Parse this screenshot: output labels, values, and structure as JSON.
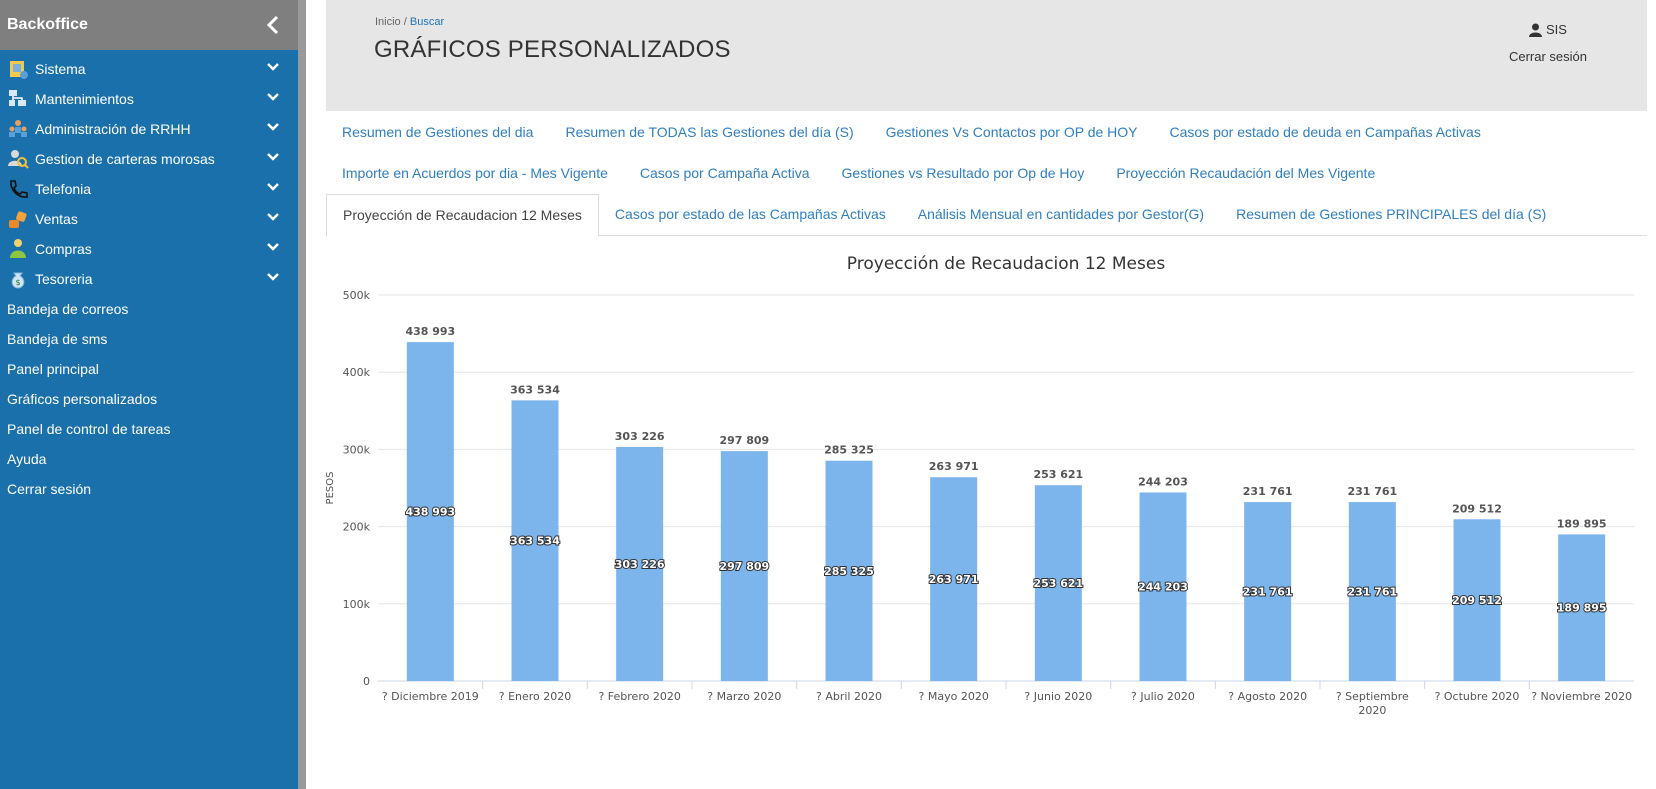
{
  "app": {
    "title": "Backoffice"
  },
  "sidebar": {
    "items": [
      {
        "label": "Sistema",
        "icon": "system-icon",
        "expandable": true
      },
      {
        "label": "Mantenimientos",
        "icon": "sitemap-icon",
        "expandable": true
      },
      {
        "label": "Administración de RRHH",
        "icon": "people-icon",
        "expandable": true
      },
      {
        "label": "Gestion de carteras morosas",
        "icon": "search-user-icon",
        "expandable": true
      },
      {
        "label": "Telefonia",
        "icon": "phone-icon",
        "expandable": true
      },
      {
        "label": "Ventas",
        "icon": "sales-icon",
        "expandable": true
      },
      {
        "label": "Compras",
        "icon": "buyer-icon",
        "expandable": true
      },
      {
        "label": "Tesoreria",
        "icon": "money-bag-icon",
        "expandable": true
      },
      {
        "label": "Bandeja de correos",
        "expandable": false
      },
      {
        "label": "Bandeja de sms",
        "expandable": false
      },
      {
        "label": "Panel principal",
        "expandable": false
      },
      {
        "label": "Gráficos personalizados",
        "expandable": false
      },
      {
        "label": "Panel de control de tareas",
        "expandable": false
      },
      {
        "label": "Ayuda",
        "expandable": false
      },
      {
        "label": "Cerrar sesión",
        "expandable": false
      }
    ]
  },
  "header": {
    "breadcrumb_home": "Inicio",
    "breadcrumb_sep": "/",
    "breadcrumb_current": "Buscar",
    "title": "GRÁFICOS PERSONALIZADOS",
    "user": "SIS",
    "logout": "Cerrar sesión"
  },
  "tabs": {
    "rows": [
      [
        "Resumen de Gestiones del dia",
        "Resumen de TODAS las Gestiones del día (S)",
        "Gestiones Vs Contactos por OP de HOY",
        "Casos por estado de deuda en Campañas Activas"
      ],
      [
        "Importe en Acuerdos por dia - Mes Vigente",
        "Casos por Campaña Activa",
        "Gestiones vs Resultado por Op de Hoy",
        "Proyección Recaudación del Mes Vigente"
      ],
      [
        "Proyección de Recaudacion 12 Meses",
        "Casos por estado de las Campañas Activas",
        "Análisis Mensual en cantidades por Gestor(G)",
        "Resumen de Gestiones PRINCIPALES del día (S)"
      ]
    ],
    "active": "Proyección de Recaudacion 12 Meses"
  },
  "colors": {
    "sidebar": "#1a70aa",
    "bar": "#7cb5ec",
    "link": "#2f7fc1"
  },
  "chart_data": {
    "type": "bar",
    "title": "Proyección de Recaudacion 12 Meses",
    "ylabel": "PESOS",
    "xlabel": "",
    "ylim": [
      0,
      500000
    ],
    "yticks": [
      "0",
      "100k",
      "200k",
      "300k",
      "400k",
      "500k"
    ],
    "grid": true,
    "categories": [
      "? Diciembre 2019",
      "? Enero 2020",
      "? Febrero 2020",
      "? Marzo 2020",
      "? Abril 2020",
      "? Mayo 2020",
      "? Junio 2020",
      "? Julio 2020",
      "? Agosto 2020",
      "? Septiembre 2020",
      "? Octubre 2020",
      "? Noviembre 2020"
    ],
    "values": [
      438993,
      363534,
      303226,
      297809,
      285325,
      263971,
      253621,
      244203,
      231761,
      231761,
      209512,
      189895
    ],
    "value_labels": [
      "438 993",
      "363 534",
      "303 226",
      "297 809",
      "285 325",
      "263 971",
      "253 621",
      "244 203",
      "231 761",
      "231 761",
      "209 512",
      "189 895"
    ]
  }
}
